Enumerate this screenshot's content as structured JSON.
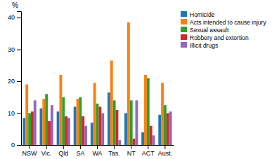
{
  "chart_data": {
    "type": "bar",
    "ylabel": "%",
    "categories": [
      "NSW",
      "Vic.",
      "Qld",
      "SA",
      "WA",
      "Tas.",
      "NT",
      "ACT",
      "Aust."
    ],
    "series": [
      {
        "name": "Homicide",
        "values": [
          8.5,
          11.5,
          10.5,
          12,
          7,
          16.5,
          10,
          4,
          9.5
        ]
      },
      {
        "name": "Acts intended to cause injury",
        "values": [
          19,
          14.5,
          22,
          14.5,
          19.5,
          26.5,
          38.5,
          22,
          19.5
        ]
      },
      {
        "name": "Sexual assault",
        "values": [
          10,
          16,
          15,
          15,
          13,
          14,
          14,
          21,
          12.5
        ]
      },
      {
        "name": "Robbery and extortion",
        "values": [
          10.5,
          7.5,
          9,
          9,
          12,
          11,
          2,
          6,
          10
        ]
      },
      {
        "name": "Illicit drugs",
        "values": [
          14,
          12.5,
          8.5,
          6,
          10,
          1.5,
          14,
          3,
          10.5
        ]
      }
    ],
    "ylim": [
      0,
      42
    ],
    "yticks": [
      0,
      10,
      20,
      30,
      40
    ],
    "grid": false,
    "legend": "upper right"
  }
}
